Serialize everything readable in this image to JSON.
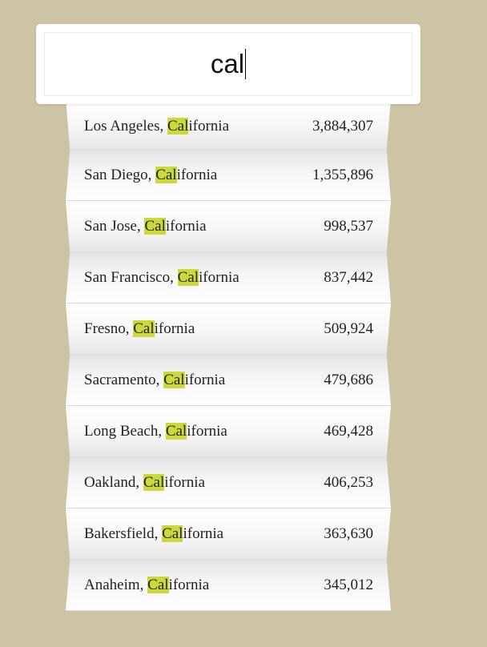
{
  "search": {
    "query": "cal"
  },
  "results": [
    {
      "prefix": "Los Angeles, ",
      "match": "Cal",
      "suffix": "ifornia",
      "population": "3,884,307"
    },
    {
      "prefix": "San Diego, ",
      "match": "Cal",
      "suffix": "ifornia",
      "population": "1,355,896"
    },
    {
      "prefix": "San Jose, ",
      "match": "Cal",
      "suffix": "ifornia",
      "population": "998,537"
    },
    {
      "prefix": "San Francisco, ",
      "match": "Cal",
      "suffix": "ifornia",
      "population": "837,442"
    },
    {
      "prefix": "Fresno, ",
      "match": "Cal",
      "suffix": "ifornia",
      "population": "509,924"
    },
    {
      "prefix": "Sacramento, ",
      "match": "Cal",
      "suffix": "ifornia",
      "population": "479,686"
    },
    {
      "prefix": "Long Beach, ",
      "match": "Cal",
      "suffix": "ifornia",
      "population": "469,428"
    },
    {
      "prefix": "Oakland, ",
      "match": "Cal",
      "suffix": "ifornia",
      "population": "406,253"
    },
    {
      "prefix": "Bakersfield, ",
      "match": "Cal",
      "suffix": "ifornia",
      "population": "363,630"
    },
    {
      "prefix": "Anaheim, ",
      "match": "Cal",
      "suffix": "ifornia",
      "population": "345,012"
    }
  ],
  "colors": {
    "background": "#cdc4a5",
    "highlight": "#cbd93a"
  }
}
